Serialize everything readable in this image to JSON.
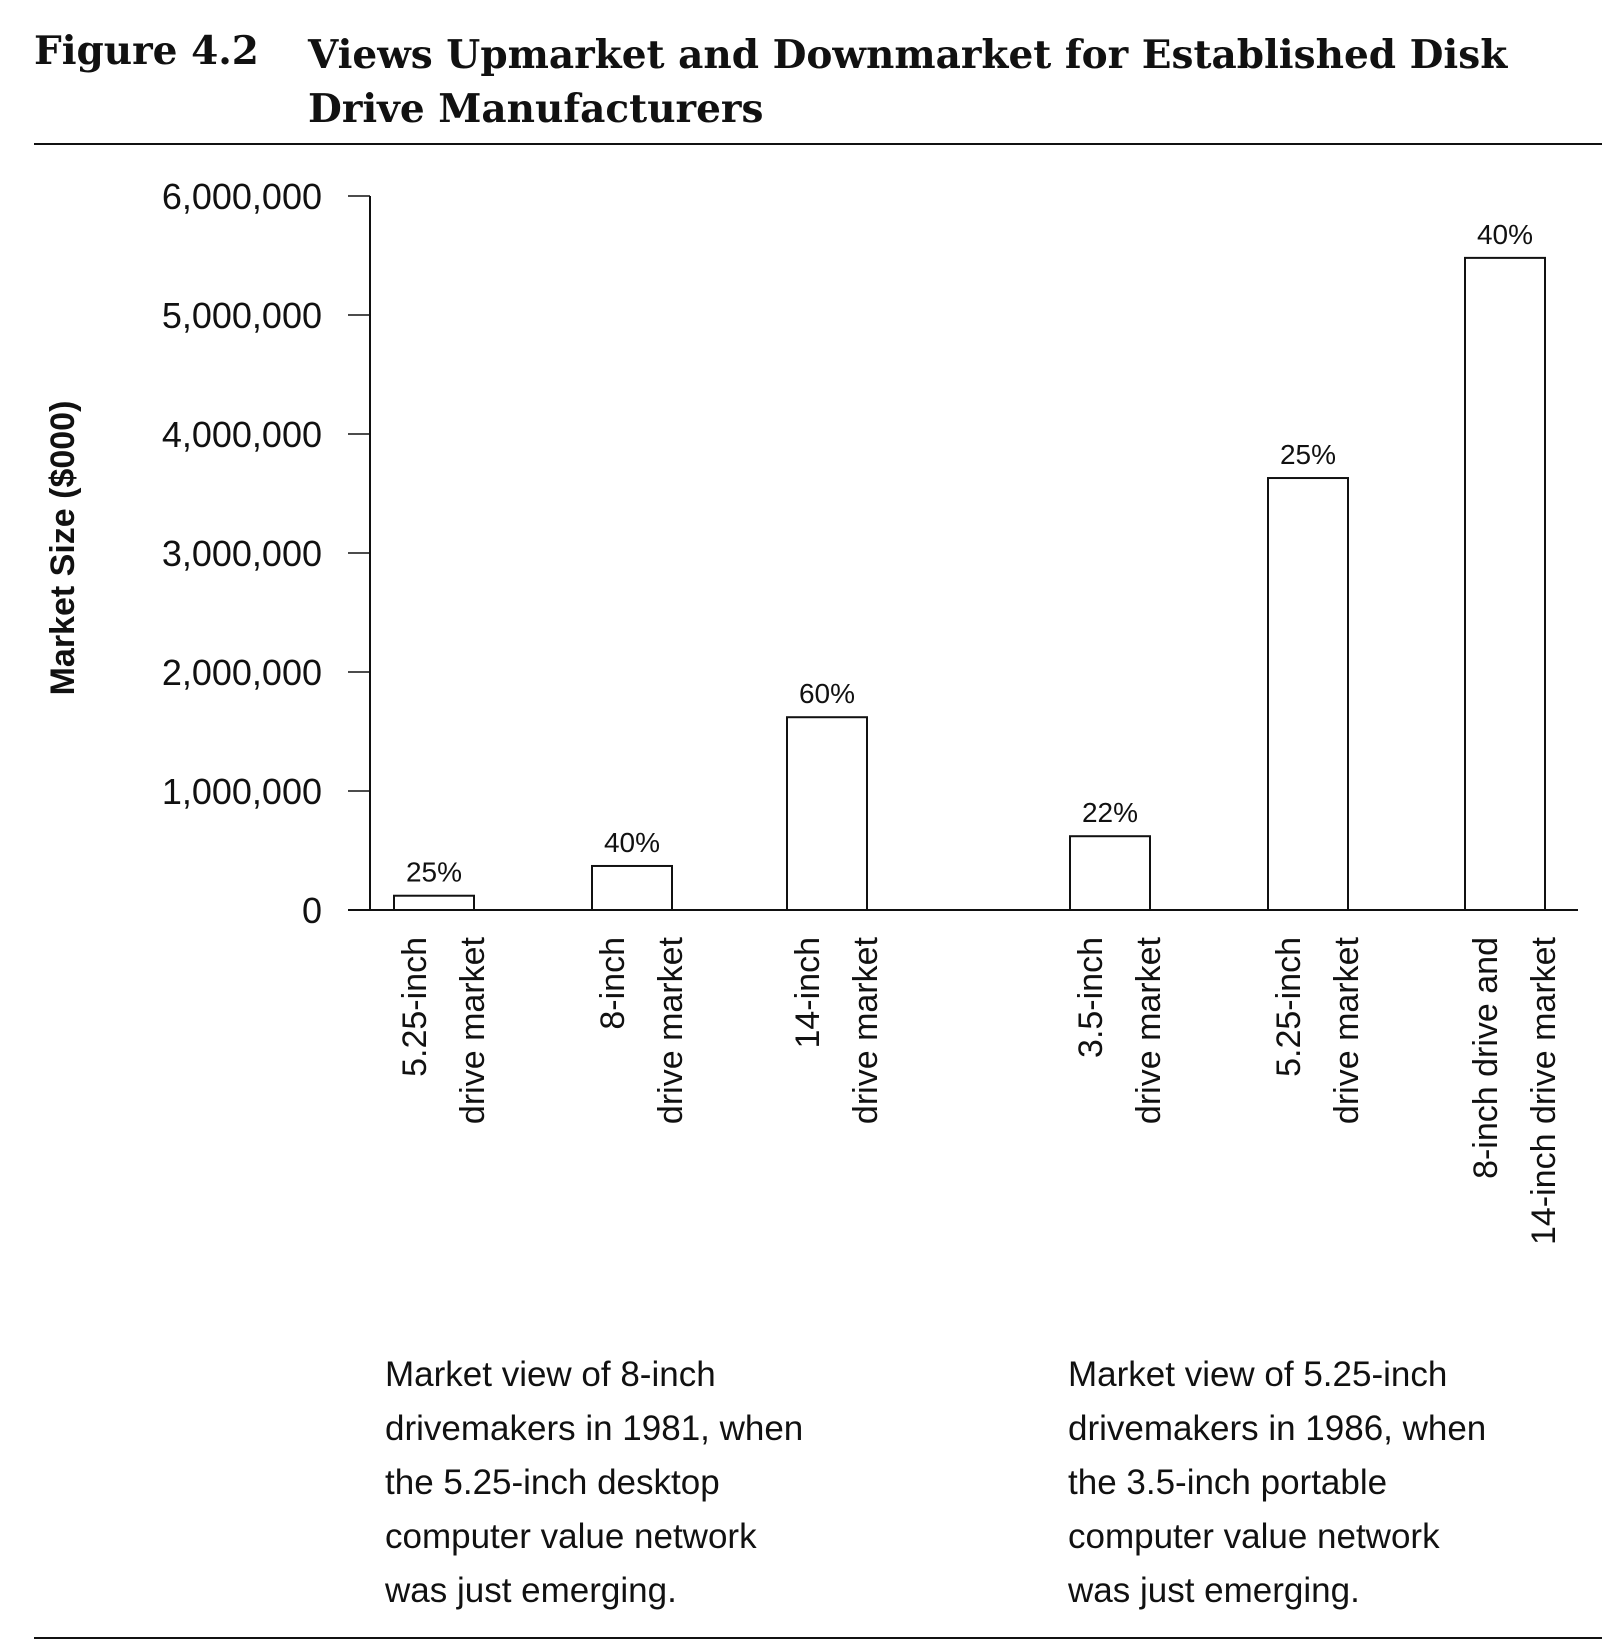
{
  "figure": {
    "label": "Figure 4.2",
    "title": "Views Upmarket and Downmarket for Established Disk Drive Manufacturers"
  },
  "chart_data": {
    "type": "bar",
    "ylabel": "Market Size ($000)",
    "xlabel": "",
    "ylim": [
      0,
      6000000
    ],
    "yticks": [
      0,
      1000000,
      2000000,
      3000000,
      4000000,
      5000000,
      6000000
    ],
    "ytick_labels": [
      "0",
      "1,000,000",
      "2,000,000",
      "3,000,000",
      "4,000,000",
      "5,000,000",
      "6,000,000"
    ],
    "grid": false,
    "categories": [
      [
        "5.25-inch",
        "drive market"
      ],
      [
        "8-inch",
        "drive market"
      ],
      [
        "14-inch",
        "drive market"
      ],
      [
        "3.5-inch",
        "drive market"
      ],
      [
        "5.25-inch",
        "drive market"
      ],
      [
        "8-inch drive and",
        "14-inch drive market"
      ]
    ],
    "values": [
      120000,
      370000,
      1620000,
      620000,
      3630000,
      5480000
    ],
    "data_labels": [
      "25%",
      "40%",
      "60%",
      "22%",
      "25%",
      "40%"
    ]
  },
  "captions": {
    "left": "Market view of 8-inch\ndrivemakers in 1981, when\nthe 5.25-inch desktop\ncomputer value network\nwas just emerging.",
    "right": "Market view of 5.25-inch\ndrivemakers in 1986, when\nthe 3.5-inch portable\ncomputer value network\nwas just emerging."
  }
}
